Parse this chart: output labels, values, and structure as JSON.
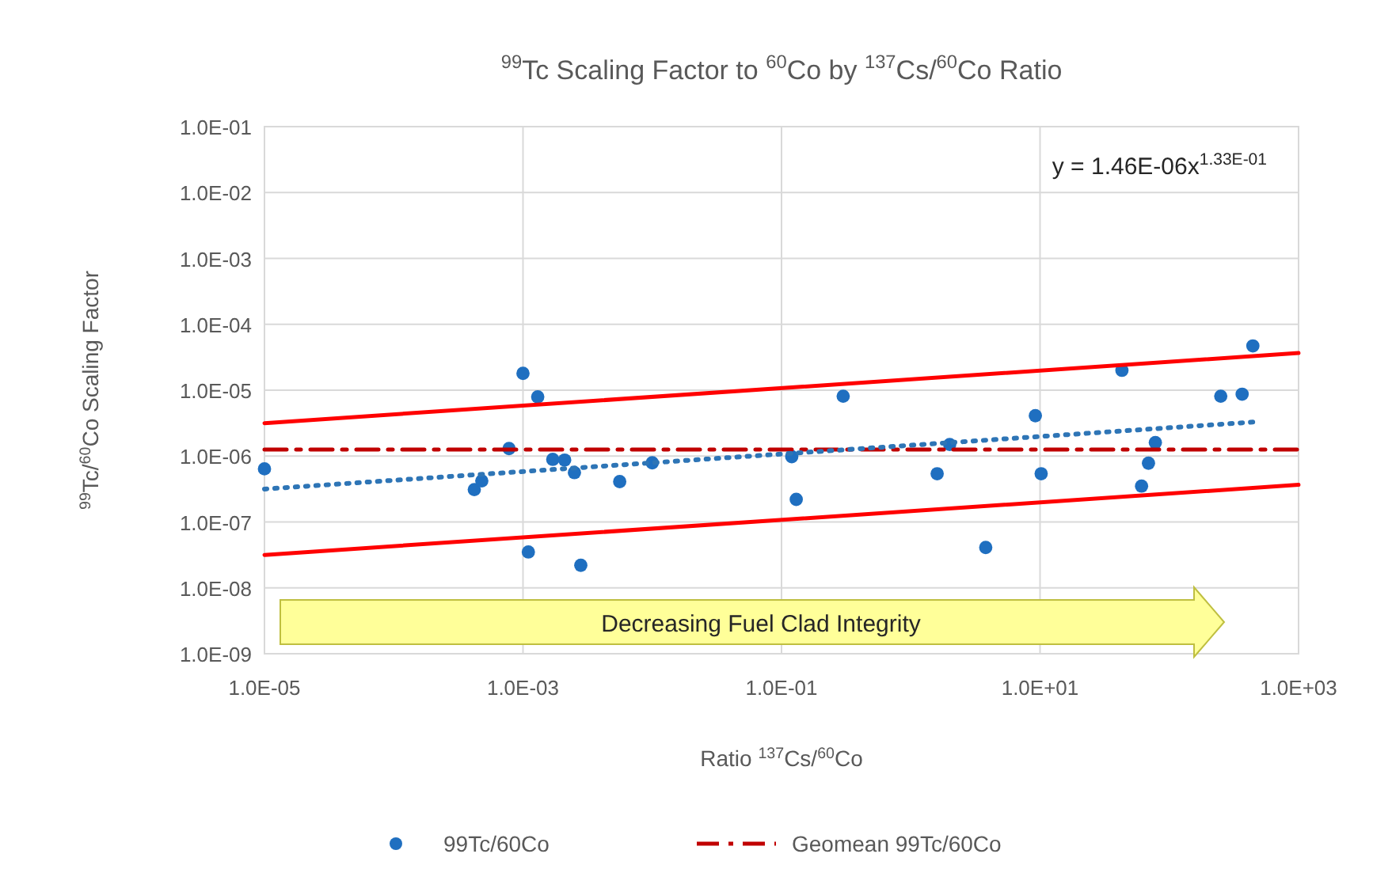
{
  "chart_data": {
    "type": "scatter",
    "title": "$^{99}$Tc Scaling Factor to $^{60}$Co by $^{137}$Cs/$^{60}$Co Ratio",
    "xlabel": "Ratio $^{137}$Cs/$^{60}$Co",
    "ylabel": "$^{99}$Tc/$^{60}$Co Scaling Factor",
    "log": "xy",
    "grid": true,
    "legend": "bottom",
    "marker": "circle",
    "xlim": [
      1e-05,
      1000
    ],
    "xticks": [
      {
        "value": 1e-05,
        "label": "1.0E-05"
      },
      {
        "value": 0.001,
        "label": "1.0E-03"
      },
      {
        "value": 0.1,
        "label": "1.0E-01"
      },
      {
        "value": 10,
        "label": "1.0E+01"
      },
      {
        "value": 1000,
        "label": "1.0E+03"
      }
    ],
    "ylim": [
      1e-09,
      0.1
    ],
    "yticks": [
      {
        "value": 1e-09,
        "label": "1.0E-09"
      },
      {
        "value": 1e-08,
        "label": "1.0E-08"
      },
      {
        "value": 1e-07,
        "label": "1.0E-07"
      },
      {
        "value": 1e-06,
        "label": "1.0E-06"
      },
      {
        "value": 1e-05,
        "label": "1.0E-05"
      },
      {
        "value": 0.0001,
        "label": "1.0E-04"
      },
      {
        "value": 0.001,
        "label": "1.0E-03"
      },
      {
        "value": 0.01,
        "label": "1.0E-02"
      },
      {
        "value": 0.1,
        "label": "1.0E-01"
      }
    ],
    "series": [
      {
        "name": "99Tc/60Co",
        "color": "#1f6fc0",
        "x": [
          1e-05,
          0.00042,
          0.00048,
          0.00078,
          0.001,
          0.0013,
          0.0011,
          0.0017,
          0.0021,
          0.0025,
          0.0028,
          0.0056,
          0.01,
          0.12,
          0.13,
          0.3,
          1.6,
          2.0,
          3.8,
          9.2,
          10.2,
          43,
          61,
          69,
          78,
          250,
          366,
          443
        ],
        "values": [
          6.4e-07,
          3.1e-07,
          4.2e-07,
          1.3e-06,
          1.8e-05,
          7.9e-06,
          3.5e-08,
          8.9e-07,
          8.7e-07,
          5.6e-07,
          2.2e-08,
          4.1e-07,
          7.9e-07,
          9.8e-07,
          2.2e-07,
          8.1e-06,
          5.4e-07,
          1.5e-06,
          4.1e-08,
          4.1e-06,
          5.4e-07,
          2e-05,
          3.5e-07,
          7.8e-07,
          1.6e-06,
          8.1e-06,
          8.7e-06,
          4.7e-05
        ]
      },
      {
        "name": "Geomean 99Tc/60Co",
        "type": "line",
        "color": "#c00000",
        "line_style": "dashed",
        "marker": "none",
        "x": [
          1e-05,
          1000
        ],
        "values": [
          1.26e-06,
          1.26e-06
        ]
      },
      {
        "type": "line",
        "color": "#2e75b6",
        "line_style": "dotted",
        "marker": "none",
        "x": [
          1e-05,
          443
        ],
        "values": [
          3.16e-07,
          3.28e-06
        ]
      },
      {
        "type": "line",
        "color": "#ff0000",
        "line_style": "solid",
        "marker": "none",
        "x": [
          1e-05,
          1000
        ],
        "values": [
          3.16e-06,
          3.66e-05
        ]
      },
      {
        "type": "line",
        "color": "#ff0000",
        "line_style": "solid",
        "marker": "none",
        "x": [
          1e-05,
          1000
        ],
        "values": [
          3.16e-08,
          3.66e-07
        ]
      }
    ],
    "annotations": [
      "y = 1.46E-06x$^{1.33E-01}$",
      "Decreasing Fuel Clad Integrity"
    ]
  }
}
